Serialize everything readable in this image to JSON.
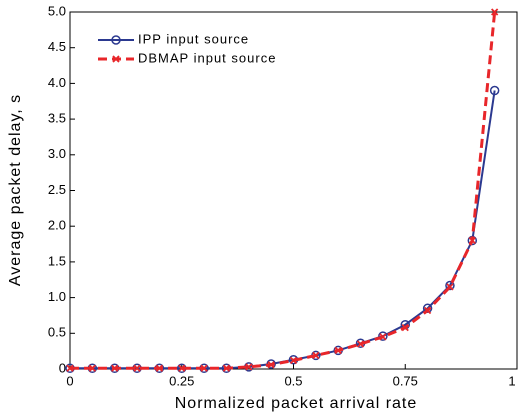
{
  "chart_data": {
    "type": "line",
    "xlabel": "Normalized packet arrival rate",
    "ylabel": "Average packet delay, s",
    "x": [
      0,
      0.05,
      0.1,
      0.15,
      0.2,
      0.25,
      0.3,
      0.35,
      0.4,
      0.45,
      0.5,
      0.55,
      0.6,
      0.65,
      0.7,
      0.75,
      0.8,
      0.85,
      0.9,
      0.95
    ],
    "series": [
      {
        "name": "IPP input source",
        "color": "#2b3990",
        "marker": "circle",
        "dash": false,
        "values": [
          0.01,
          0.01,
          0.01,
          0.01,
          0.01,
          0.01,
          0.01,
          0.01,
          0.03,
          0.07,
          0.13,
          0.19,
          0.26,
          0.36,
          0.46,
          0.62,
          0.85,
          1.17,
          1.8,
          3.9
        ]
      },
      {
        "name": "DBMAP input source",
        "color": "#e8262a",
        "marker": "x",
        "dash": true,
        "values": [
          0.01,
          0.01,
          0.01,
          0.01,
          0.01,
          0.01,
          0.01,
          0.01,
          0.03,
          0.06,
          0.12,
          0.19,
          0.26,
          0.35,
          0.45,
          0.58,
          0.82,
          1.15,
          1.8,
          5.0
        ]
      }
    ],
    "xlim": [
      0,
      1
    ],
    "ylim": [
      0,
      5
    ],
    "xticks": [
      0,
      0.25,
      0.5,
      0.75,
      1
    ],
    "yticks": [
      0,
      0.5,
      {
        "value": 1,
        "label": "1.0"
      },
      1.5,
      {
        "value": 2,
        "label": "2.0"
      },
      2.5,
      {
        "value": 3,
        "label": "3.0"
      },
      3.5,
      {
        "value": 4,
        "label": "4.0"
      },
      4.5,
      {
        "value": 5,
        "label": "5.0"
      }
    ],
    "legend": "upper left"
  }
}
